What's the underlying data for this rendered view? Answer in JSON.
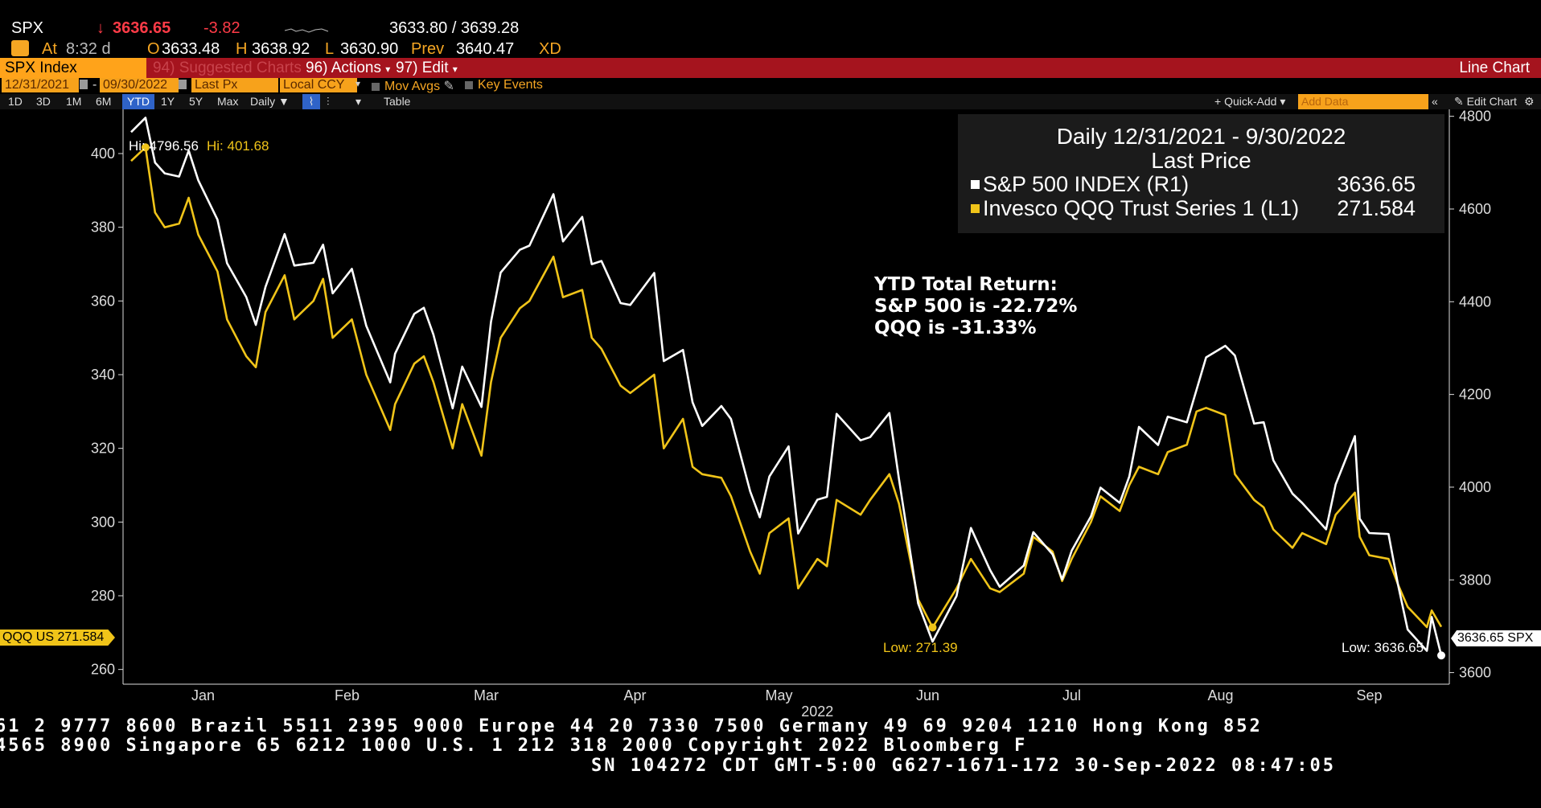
{
  "quote": {
    "ticker": "SPX",
    "arrow": "↓",
    "last": "3636.65",
    "change": "-3.82",
    "bid_ask": "3633.80 / 3639.28",
    "at_label": "At",
    "time": "8:32 d",
    "open_label": "O",
    "open": "3633.48",
    "high_label": "H",
    "high": "3638.92",
    "low_label": "L",
    "low": "3630.90",
    "prev_label": "Prev",
    "prev": "3640.47",
    "xd": "XD"
  },
  "menubar": {
    "security": "SPX Index",
    "suggested": "94) Suggested Charts",
    "actions": "96) Actions",
    "edit": "97) Edit",
    "chart_type": "Line Chart"
  },
  "settings": {
    "start_date": "12/31/2021",
    "end_date": "09/30/2022",
    "field": "Last Px",
    "currency": "Local CCY",
    "mov_avgs": "Mov Avgs",
    "key_events": "Key Events"
  },
  "toolbar": {
    "ranges": [
      "1D",
      "3D",
      "1M",
      "6M",
      "YTD",
      "1Y",
      "5Y",
      "Max"
    ],
    "selected_range": "YTD",
    "frequency": "Daily",
    "table": "Table",
    "quick_add": "Quick-Add",
    "add_data_placeholder": "Add Data",
    "edit_chart": "Edit Chart"
  },
  "legend": {
    "line1": "Daily 12/31/2021 - 9/30/2022",
    "line2": "Last Price",
    "series": [
      {
        "label": "S&P 500 INDEX  (R1)",
        "value": "3636.65",
        "color": "#ffffff"
      },
      {
        "label": "Invesco QQQ Trust Series 1  (L1)",
        "value": "271.584",
        "color": "#f0c419"
      }
    ]
  },
  "annotation": {
    "line1": "YTD Total Return:",
    "line2": "S&P 500 is -22.72%",
    "line3": "QQQ is -31.33%"
  },
  "markers": {
    "hi_spx": "Hi: 4796.56",
    "hi_qqq": "Hi: 401.68",
    "low_qqq": "Low: 271.39",
    "low_spx": "Low: 3636.65",
    "qqq_tag": "QQQ US 271.584",
    "spx_tag": "3636.65 SPX"
  },
  "footer": {
    "line1": "61 2 9777 8600 Brazil 5511 2395 9000 Europe 44 20 7330 7500 Germany 49 69 9204 1210 Hong Kong 852",
    "line2": " 4565 8900       Singapore 65 6212 1000      U.S. 1 212 318 2000       Copyright 2022 Bloomberg F",
    "line3": "SN 104272 CDT  GMT-5:00 G627-1671-172 30-Sep-2022 08:47:05"
  },
  "chart_data": {
    "type": "line",
    "x": [
      "2021-12-31",
      "2022-01-03",
      "2022-01-05",
      "2022-01-07",
      "2022-01-10",
      "2022-01-12",
      "2022-01-14",
      "2022-01-18",
      "2022-01-20",
      "2022-01-24",
      "2022-01-26",
      "2022-01-28",
      "2022-02-01",
      "2022-02-03",
      "2022-02-07",
      "2022-02-09",
      "2022-02-11",
      "2022-02-15",
      "2022-02-18",
      "2022-02-23",
      "2022-02-24",
      "2022-02-28",
      "2022-03-02",
      "2022-03-04",
      "2022-03-08",
      "2022-03-10",
      "2022-03-14",
      "2022-03-16",
      "2022-03-18",
      "2022-03-22",
      "2022-03-24",
      "2022-03-29",
      "2022-03-31",
      "2022-04-04",
      "2022-04-06",
      "2022-04-08",
      "2022-04-12",
      "2022-04-14",
      "2022-04-19",
      "2022-04-21",
      "2022-04-25",
      "2022-04-27",
      "2022-04-29",
      "2022-05-03",
      "2022-05-05",
      "2022-05-09",
      "2022-05-11",
      "2022-05-13",
      "2022-05-17",
      "2022-05-19",
      "2022-05-23",
      "2022-05-25",
      "2022-05-27",
      "2022-06-01",
      "2022-06-03",
      "2022-06-07",
      "2022-06-09",
      "2022-06-13",
      "2022-06-16",
      "2022-06-21",
      "2022-06-24",
      "2022-06-28",
      "2022-06-30",
      "2022-07-05",
      "2022-07-07",
      "2022-07-11",
      "2022-07-13",
      "2022-07-15",
      "2022-07-19",
      "2022-07-21",
      "2022-07-25",
      "2022-07-27",
      "2022-07-29",
      "2022-08-02",
      "2022-08-04",
      "2022-08-08",
      "2022-08-10",
      "2022-08-12",
      "2022-08-16",
      "2022-08-18",
      "2022-08-22",
      "2022-08-24",
      "2022-08-26",
      "2022-08-30",
      "2022-09-01",
      "2022-09-06",
      "2022-09-08",
      "2022-09-12",
      "2022-09-13",
      "2022-09-15",
      "2022-09-19",
      "2022-09-21",
      "2022-09-23",
      "2022-09-27",
      "2022-09-28",
      "2022-09-30"
    ],
    "series": [
      {
        "name": "S&P 500 INDEX  (R1)",
        "axis": "right",
        "color": "#ffffff",
        "values": [
          4766,
          4797,
          4700,
          4677,
          4670,
          4726,
          4662,
          4577,
          4483,
          4410,
          4350,
          4432,
          4546,
          4478,
          4484,
          4523,
          4418,
          4471,
          4348,
          4226,
          4288,
          4374,
          4387,
          4329,
          4170,
          4260,
          4173,
          4357,
          4463,
          4512,
          4521,
          4632,
          4530,
          4583,
          4481,
          4488,
          4397,
          4393,
          4462,
          4272,
          4296,
          4183,
          4132,
          4175,
          4147,
          3991,
          3935,
          4023,
          4088,
          3900,
          3973,
          3979,
          4158,
          4101,
          4108,
          4160,
          4018,
          3749,
          3667,
          3765,
          3912,
          3821,
          3785,
          3831,
          3903,
          3855,
          3801,
          3863,
          3937,
          3999,
          3966,
          4023,
          4130,
          4091,
          4152,
          4140,
          4210,
          4280,
          4305,
          4284,
          4137,
          4140,
          4058,
          3986,
          3966,
          3909,
          4006,
          4110,
          3932,
          3901,
          3899,
          3789,
          3693,
          3647,
          3720,
          3637
        ]
      },
      {
        "name": "Invesco QQQ Trust Series 1  (L1)",
        "axis": "left",
        "color": "#f0c419",
        "values": [
          398,
          401.68,
          384,
          380,
          381,
          388,
          378,
          368,
          355,
          345,
          342,
          357,
          367,
          355,
          360,
          366,
          350,
          355,
          340,
          325,
          332,
          343,
          345,
          338,
          320,
          332,
          318,
          338,
          350,
          358,
          360,
          372,
          361,
          363,
          350,
          347,
          337,
          335,
          340,
          320,
          328,
          315,
          313,
          312,
          307,
          292,
          286,
          297,
          301,
          282,
          290,
          288,
          306,
          302,
          306,
          313,
          305,
          279,
          271.39,
          282,
          290,
          282,
          281,
          286,
          296,
          292,
          284,
          290,
          300,
          307,
          303,
          310,
          315,
          313,
          319,
          321,
          330,
          331,
          329,
          313,
          306,
          304,
          298,
          293,
          297,
          294,
          302,
          308,
          296,
          291,
          290,
          283,
          277,
          271.5,
          276,
          271.584
        ]
      }
    ],
    "left_axis": {
      "ylim": [
        256,
        412
      ],
      "ticks": [
        260,
        280,
        300,
        320,
        340,
        360,
        380,
        400
      ]
    },
    "right_axis": {
      "ylim": [
        3575,
        4815
      ],
      "ticks": [
        3600,
        3800,
        4000,
        4200,
        4400,
        4600,
        4800
      ]
    },
    "x_ticks": [
      {
        "date": "2022-01-15",
        "label": "Jan"
      },
      {
        "date": "2022-02-14",
        "label": "Feb"
      },
      {
        "date": "2022-03-15",
        "label": "Mar"
      },
      {
        "date": "2022-04-15",
        "label": "Apr"
      },
      {
        "date": "2022-05-15",
        "label": "May"
      },
      {
        "date": "2022-06-15",
        "label": "Jun"
      },
      {
        "date": "2022-07-15",
        "label": "Jul"
      },
      {
        "date": "2022-08-15",
        "label": "Aug"
      },
      {
        "date": "2022-09-15",
        "label": "Sep"
      }
    ],
    "x_year_label": "2022",
    "grid": false
  }
}
